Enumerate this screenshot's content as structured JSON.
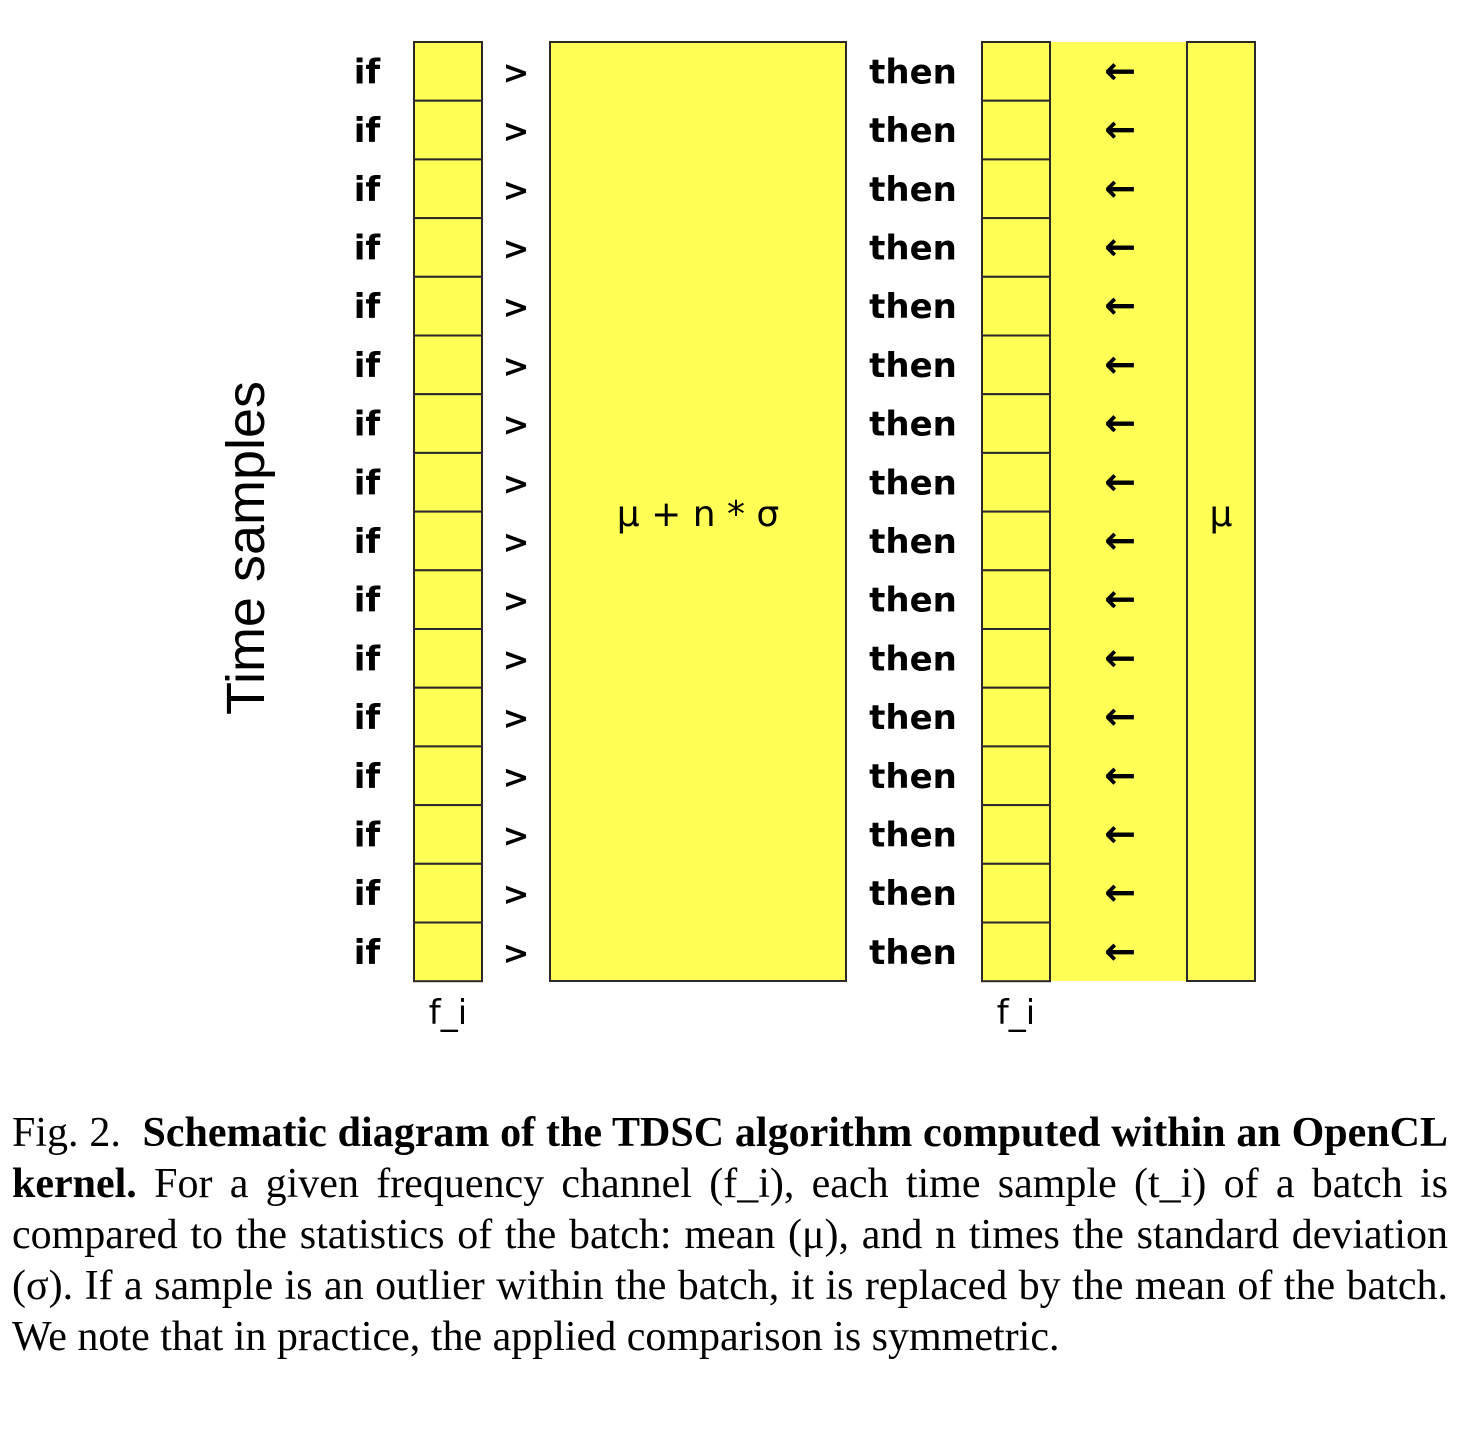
{
  "diagram": {
    "axis_label": "Time samples",
    "row_count": 16,
    "if_label": "if",
    "gt_label": ">",
    "then_label": "then",
    "arrow_label": "←",
    "threshold_label": "μ + n * σ",
    "mean_label": "μ",
    "left_column_label": "f_i",
    "right_column_label": "f_i",
    "colors": {
      "fill": "#ffff55",
      "stroke": "#2a2a2a"
    }
  },
  "caption": {
    "fig_label": "Fig. 2.",
    "title": "Schematic diagram of the TDSC algorithm computed within an OpenCL kernel.",
    "body": "For a given frequency channel (f_i), each time sample (t_i) of a batch is compared to the statistics of the batch: mean (μ), and n times the standard deviation (σ). If a sample is an outlier within the batch, it is replaced by the mean of the batch. We note that in practice, the applied comparison is symmetric."
  }
}
